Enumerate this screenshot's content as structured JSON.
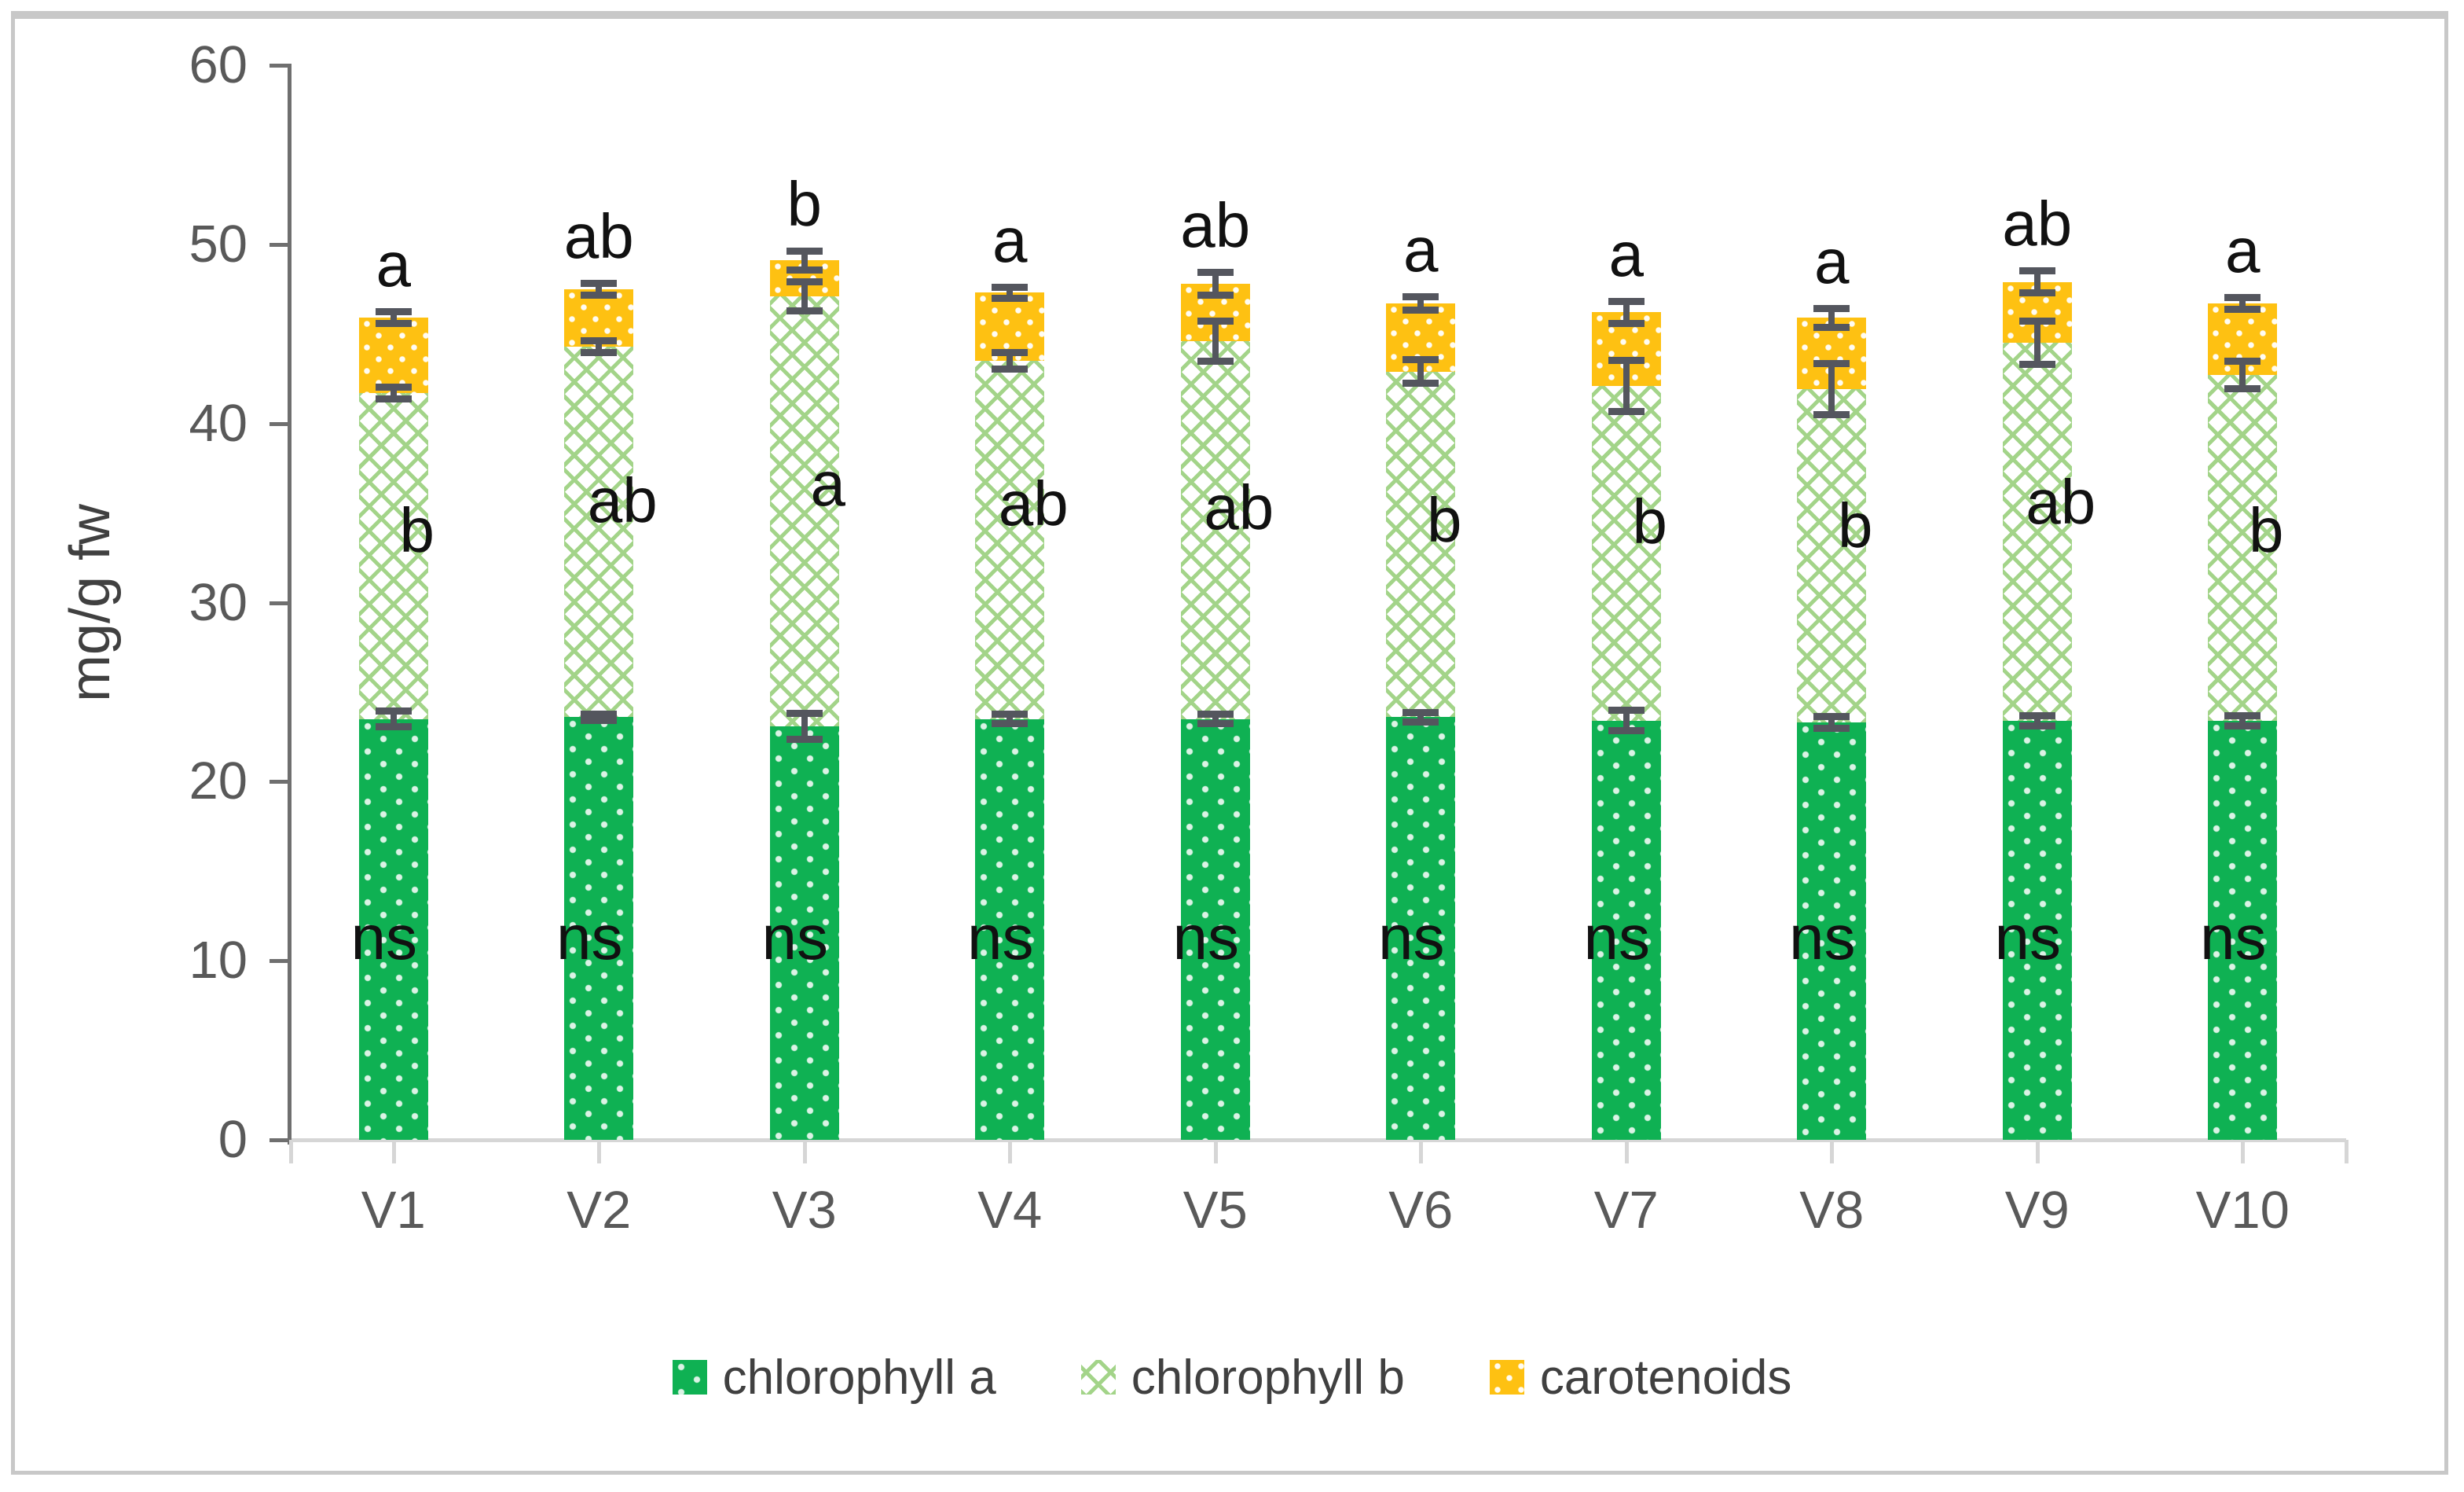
{
  "figure": {
    "background": "#ffffff",
    "border_color": "#c8c8c8"
  },
  "chart_data": {
    "type": "bar",
    "stacked": true,
    "title": "",
    "xlabel": "",
    "ylabel": "mg/g fw",
    "ylim": [
      0,
      60
    ],
    "yticks": [
      0,
      10,
      20,
      30,
      40,
      50,
      60
    ],
    "grid": "off",
    "categories": [
      "V1",
      "V2",
      "V3",
      "V4",
      "V5",
      "V6",
      "V7",
      "V8",
      "V9",
      "V10"
    ],
    "series": [
      {
        "name": "chlorophyll a",
        "pattern": "green-dots",
        "values": [
          23.5,
          23.6,
          23.1,
          23.5,
          23.5,
          23.6,
          23.4,
          23.3,
          23.4,
          23.4
        ]
      },
      {
        "name": "chlorophyll b",
        "pattern": "green-crosshatch",
        "values": [
          18.2,
          20.7,
          24.0,
          20.0,
          21.1,
          19.3,
          18.7,
          18.6,
          21.1,
          19.3
        ]
      },
      {
        "name": "carotenoids",
        "pattern": "orange-dots",
        "values": [
          4.2,
          3.2,
          2.0,
          3.8,
          3.2,
          3.8,
          4.1,
          4.0,
          3.4,
          4.0
        ]
      }
    ],
    "stack_tops": {
      "chlorophyll_a_top": [
        23.5,
        23.6,
        23.1,
        23.5,
        23.5,
        23.6,
        23.4,
        23.3,
        23.4,
        23.4
      ],
      "chlorophyll_ab_top": [
        41.7,
        44.3,
        47.1,
        43.5,
        44.6,
        42.9,
        42.1,
        41.9,
        44.5,
        42.7
      ],
      "total_top": [
        45.9,
        47.5,
        49.1,
        47.3,
        47.8,
        46.7,
        46.2,
        45.9,
        47.9,
        46.7
      ]
    },
    "error_bars": [
      {
        "series": "chlorophyll a",
        "at": "top of chlorophyll a segment",
        "plus_minus": [
          0.4,
          0.15,
          0.7,
          0.25,
          0.25,
          0.25,
          0.55,
          0.3,
          0.25,
          0.25
        ]
      },
      {
        "series": "chlorophyll b",
        "at": "top of chlorophyll a+b",
        "plus_minus": [
          0.3,
          0.3,
          0.8,
          0.45,
          1.1,
          0.65,
          1.4,
          1.4,
          1.2,
          0.75
        ]
      },
      {
        "series": "carotenoids",
        "at": "top of stack",
        "plus_minus": [
          0.3,
          0.3,
          0.5,
          0.3,
          0.6,
          0.35,
          0.6,
          0.5,
          0.6,
          0.3
        ]
      }
    ],
    "annotations": {
      "top_letters": [
        "a",
        "ab",
        "b",
        "a",
        "ab",
        "a",
        "a",
        "a",
        "ab",
        "a"
      ],
      "mid_letters": [
        "b",
        "ab",
        "a",
        "ab",
        "ab",
        "b",
        "b",
        "b",
        "ab",
        "b"
      ],
      "mid_letter_y": [
        34,
        35.7,
        36.6,
        35.5,
        35.3,
        34.6,
        34.5,
        34.3,
        35.6,
        34
      ],
      "bottom_letters": [
        "ns",
        "ns",
        "ns",
        "ns",
        "ns",
        "ns",
        "ns",
        "ns",
        "ns",
        "ns"
      ],
      "bottom_letter_y": 11.3
    },
    "legend": {
      "position": "bottom",
      "items": [
        {
          "label": "chlorophyll a",
          "swatch": "green-dots"
        },
        {
          "label": "chlorophyll b",
          "swatch": "green-crosshatch"
        },
        {
          "label": "carotenoids",
          "swatch": "orange-dots"
        }
      ]
    },
    "colors": {
      "chlorophyll_a": "#0fb153",
      "chlorophyll_b_hatch": "#a3d489",
      "carotenoids": "#fec112",
      "error_bar": "#54565e",
      "axis_text": "#595959",
      "y_axis_line": "#6f6f6f",
      "x_axis_line": "#d6d6d6",
      "letters": "#111111"
    }
  }
}
